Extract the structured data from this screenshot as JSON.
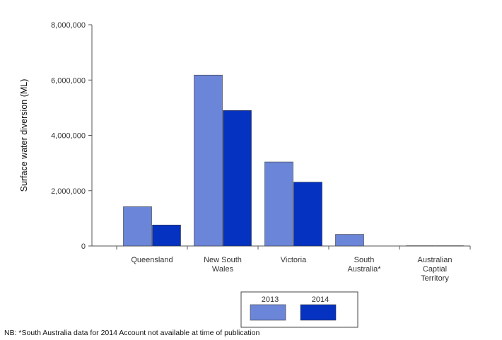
{
  "chart_data": {
    "type": "bar",
    "ylabel": "Surface water diversion (ML)",
    "ylim": [
      0,
      8000000
    ],
    "yticks": [
      "0",
      "2,000,000",
      "4,000,000",
      "6,000,000",
      "8,000,000"
    ],
    "ytick_values": [
      0,
      2000000,
      4000000,
      6000000,
      8000000
    ],
    "categories": [
      [
        "Queensland"
      ],
      [
        "New South",
        "Wales"
      ],
      [
        "Victoria"
      ],
      [
        "South",
        "Australia*"
      ],
      [
        "Australian",
        "Captial",
        "Territory"
      ]
    ],
    "series": [
      {
        "name": "2013",
        "color": "#6B86D8",
        "values": [
          1420000,
          6180000,
          3040000,
          420000,
          10000
        ]
      },
      {
        "name": "2014",
        "color": "#0532C0",
        "values": [
          760000,
          4900000,
          2310000,
          0,
          10000
        ]
      }
    ],
    "legend_position": "bottom-center",
    "grid": false
  },
  "footnote": "NB: *South Australia data for 2014 Account not available at time of publication"
}
